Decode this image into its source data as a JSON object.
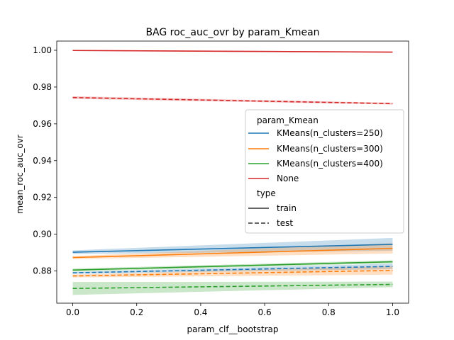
{
  "chart_data": {
    "type": "line",
    "title": "BAG roc_auc_ovr by param_Kmean",
    "xlabel": "param_clf__bootstrap",
    "ylabel": "mean_roc_auc_ovr",
    "xlim": [
      -0.05,
      1.05
    ],
    "ylim": [
      0.8625,
      1.005
    ],
    "x_ticks": [
      0.0,
      0.2,
      0.4,
      0.6,
      0.8,
      1.0
    ],
    "x_tick_labels": [
      "0.0",
      "0.2",
      "0.4",
      "0.6",
      "0.8",
      "1.0"
    ],
    "y_ticks": [
      0.88,
      0.9,
      0.92,
      0.94,
      0.96,
      0.98,
      1.0
    ],
    "y_tick_labels": [
      "0.88",
      "0.90",
      "0.92",
      "0.94",
      "0.96",
      "0.98",
      "1.00"
    ],
    "grid": false,
    "legend": {
      "placement": "center-right",
      "hue_title": "param_Kmean",
      "style_title": "type",
      "hue_entries": [
        {
          "label": "KMeans(n_clusters=250)",
          "color": "#1f77b4"
        },
        {
          "label": "KMeans(n_clusters=300)",
          "color": "#ff7f0e"
        },
        {
          "label": "KMeans(n_clusters=400)",
          "color": "#2ca02c"
        },
        {
          "label": "None",
          "color": "#d62728"
        }
      ],
      "style_entries": [
        {
          "label": "train",
          "dash": "solid"
        },
        {
          "label": "test",
          "dash": "dashed"
        }
      ]
    },
    "series": [
      {
        "name": "KMeans(n_clusters=250)",
        "type_label": "train",
        "color": "#1f77b4",
        "dash": "solid",
        "x": [
          0.0,
          1.0
        ],
        "y": [
          0.8902,
          0.8945
        ],
        "ci_low": [
          0.8892,
          0.891
        ],
        "ci_high": [
          0.8912,
          0.898
        ]
      },
      {
        "name": "KMeans(n_clusters=250)",
        "type_label": "test",
        "color": "#1f77b4",
        "dash": "dashed",
        "x": [
          0.0,
          1.0
        ],
        "y": [
          0.879,
          0.8825
        ],
        "ci_low": [
          0.8785,
          0.881
        ],
        "ci_high": [
          0.8795,
          0.884
        ]
      },
      {
        "name": "KMeans(n_clusters=300)",
        "type_label": "train",
        "color": "#ff7f0e",
        "dash": "solid",
        "x": [
          0.0,
          1.0
        ],
        "y": [
          0.8873,
          0.8923
        ],
        "ci_low": [
          0.8865,
          0.8895
        ],
        "ci_high": [
          0.8881,
          0.8951
        ]
      },
      {
        "name": "KMeans(n_clusters=300)",
        "type_label": "test",
        "color": "#ff7f0e",
        "dash": "dashed",
        "x": [
          0.0,
          1.0
        ],
        "y": [
          0.8773,
          0.8803
        ],
        "ci_low": [
          0.8765,
          0.878
        ],
        "ci_high": [
          0.8781,
          0.8826
        ]
      },
      {
        "name": "KMeans(n_clusters=400)",
        "type_label": "train",
        "color": "#2ca02c",
        "dash": "solid",
        "x": [
          0.0,
          1.0
        ],
        "y": [
          0.8805,
          0.885
        ],
        "ci_low": [
          0.8797,
          0.8842
        ],
        "ci_high": [
          0.8813,
          0.8858
        ]
      },
      {
        "name": "KMeans(n_clusters=400)",
        "type_label": "test",
        "color": "#2ca02c",
        "dash": "dashed",
        "x": [
          0.0,
          1.0
        ],
        "y": [
          0.8705,
          0.8727
        ],
        "ci_low": [
          0.867,
          0.8712
        ],
        "ci_high": [
          0.874,
          0.8742
        ]
      },
      {
        "name": "None",
        "type_label": "train",
        "color": "#d62728",
        "dash": "solid",
        "x": [
          0.0,
          1.0
        ],
        "y": [
          0.9999,
          0.999
        ],
        "ci_low": [
          0.9996,
          0.9987
        ],
        "ci_high": [
          1.0002,
          0.9993
        ]
      },
      {
        "name": "None",
        "type_label": "test",
        "color": "#d62728",
        "dash": "dashed",
        "x": [
          0.0,
          1.0
        ],
        "y": [
          0.9743,
          0.971
        ],
        "ci_low": [
          0.9736,
          0.9705
        ],
        "ci_high": [
          0.975,
          0.9715
        ]
      }
    ]
  }
}
